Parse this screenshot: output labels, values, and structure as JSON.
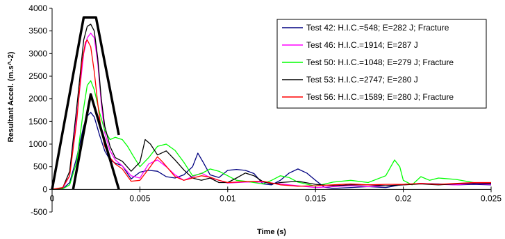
{
  "chart_data": {
    "type": "line",
    "title": "",
    "xlabel": "Time (s)",
    "ylabel": "Resultant Accel. (m.s^-2)",
    "xlim": [
      0,
      0.025
    ],
    "ylim": [
      -500,
      4000
    ],
    "x_ticks": [
      "0",
      "0.005",
      "0.01",
      "0.015",
      "0.02",
      "0.025"
    ],
    "y_ticks": [
      "4000",
      "3500",
      "3000",
      "2500",
      "2000",
      "1500",
      "1000",
      "500",
      "0",
      "-500"
    ],
    "x_tick_values": [
      0,
      0.005,
      0.01,
      0.015,
      0.02,
      0.025
    ],
    "y_tick_values": [
      4000,
      3500,
      3000,
      2500,
      2000,
      1500,
      1000,
      500,
      0,
      -500
    ],
    "grid": false,
    "legend_position": "top-right",
    "series": [
      {
        "name": "Test 42: H.I.C.=548; E=282 J; Fracture",
        "color": "#000080",
        "points": [
          [
            0,
            0
          ],
          [
            0.0006,
            10
          ],
          [
            0.001,
            150
          ],
          [
            0.0014,
            700
          ],
          [
            0.0018,
            1400
          ],
          [
            0.002,
            1620
          ],
          [
            0.0022,
            1700
          ],
          [
            0.0024,
            1600
          ],
          [
            0.0027,
            1200
          ],
          [
            0.003,
            850
          ],
          [
            0.0033,
            650
          ],
          [
            0.0036,
            580
          ],
          [
            0.004,
            520
          ],
          [
            0.0045,
            230
          ],
          [
            0.005,
            380
          ],
          [
            0.0055,
            420
          ],
          [
            0.006,
            400
          ],
          [
            0.0065,
            280
          ],
          [
            0.007,
            250
          ],
          [
            0.0075,
            320
          ],
          [
            0.008,
            500
          ],
          [
            0.0083,
            800
          ],
          [
            0.0086,
            600
          ],
          [
            0.009,
            320
          ],
          [
            0.0095,
            260
          ],
          [
            0.01,
            420
          ],
          [
            0.0105,
            440
          ],
          [
            0.011,
            420
          ],
          [
            0.0115,
            350
          ],
          [
            0.012,
            120
          ],
          [
            0.0125,
            100
          ],
          [
            0.013,
            200
          ],
          [
            0.0135,
            360
          ],
          [
            0.014,
            450
          ],
          [
            0.0145,
            360
          ],
          [
            0.015,
            200
          ],
          [
            0.0155,
            50
          ],
          [
            0.016,
            20
          ],
          [
            0.017,
            40
          ],
          [
            0.018,
            60
          ],
          [
            0.019,
            40
          ],
          [
            0.02,
            110
          ],
          [
            0.021,
            130
          ],
          [
            0.022,
            120
          ],
          [
            0.023,
            100
          ],
          [
            0.024,
            110
          ],
          [
            0.025,
            100
          ]
        ]
      },
      {
        "name": "Test 46: H.I.C.=1914; E=287 J",
        "color": "#FF00FF",
        "points": [
          [
            0,
            0
          ],
          [
            0.0006,
            20
          ],
          [
            0.001,
            300
          ],
          [
            0.0014,
            1600
          ],
          [
            0.0018,
            3000
          ],
          [
            0.002,
            3350
          ],
          [
            0.0022,
            3450
          ],
          [
            0.0024,
            3350
          ],
          [
            0.0026,
            2800
          ],
          [
            0.0028,
            1900
          ],
          [
            0.003,
            1250
          ],
          [
            0.0033,
            850
          ],
          [
            0.0036,
            650
          ],
          [
            0.004,
            520
          ],
          [
            0.0045,
            300
          ],
          [
            0.005,
            250
          ],
          [
            0.0055,
            560
          ],
          [
            0.006,
            650
          ],
          [
            0.0065,
            500
          ],
          [
            0.007,
            320
          ],
          [
            0.0075,
            200
          ],
          [
            0.008,
            280
          ],
          [
            0.0085,
            360
          ],
          [
            0.009,
            260
          ],
          [
            0.0095,
            200
          ],
          [
            0.01,
            140
          ],
          [
            0.011,
            160
          ],
          [
            0.012,
            160
          ],
          [
            0.013,
            120
          ],
          [
            0.014,
            80
          ],
          [
            0.015,
            40
          ],
          [
            0.016,
            60
          ],
          [
            0.017,
            80
          ],
          [
            0.018,
            60
          ],
          [
            0.019,
            80
          ],
          [
            0.02,
            100
          ],
          [
            0.021,
            130
          ],
          [
            0.022,
            110
          ],
          [
            0.023,
            100
          ],
          [
            0.024,
            130
          ],
          [
            0.025,
            110
          ]
        ]
      },
      {
        "name": "Test 50: H.I.C.=1048; E=279 J; Fracture",
        "color": "#00FF00",
        "points": [
          [
            0,
            0
          ],
          [
            0.0006,
            10
          ],
          [
            0.001,
            100
          ],
          [
            0.0014,
            600
          ],
          [
            0.0018,
            1800
          ],
          [
            0.002,
            2300
          ],
          [
            0.0022,
            2400
          ],
          [
            0.0024,
            2200
          ],
          [
            0.0027,
            1700
          ],
          [
            0.003,
            1300
          ],
          [
            0.0033,
            1100
          ],
          [
            0.0036,
            1150
          ],
          [
            0.004,
            1100
          ],
          [
            0.0043,
            950
          ],
          [
            0.0046,
            750
          ],
          [
            0.005,
            500
          ],
          [
            0.0055,
            700
          ],
          [
            0.006,
            950
          ],
          [
            0.0065,
            1000
          ],
          [
            0.007,
            860
          ],
          [
            0.0075,
            600
          ],
          [
            0.008,
            300
          ],
          [
            0.0085,
            350
          ],
          [
            0.009,
            450
          ],
          [
            0.0095,
            400
          ],
          [
            0.01,
            300
          ],
          [
            0.0105,
            200
          ],
          [
            0.011,
            180
          ],
          [
            0.0115,
            150
          ],
          [
            0.012,
            120
          ],
          [
            0.0125,
            200
          ],
          [
            0.013,
            300
          ],
          [
            0.0135,
            260
          ],
          [
            0.014,
            160
          ],
          [
            0.015,
            70
          ],
          [
            0.016,
            160
          ],
          [
            0.017,
            200
          ],
          [
            0.018,
            150
          ],
          [
            0.019,
            300
          ],
          [
            0.0195,
            650
          ],
          [
            0.0198,
            500
          ],
          [
            0.02,
            200
          ],
          [
            0.0205,
            100
          ],
          [
            0.021,
            280
          ],
          [
            0.0215,
            200
          ],
          [
            0.022,
            250
          ],
          [
            0.023,
            220
          ],
          [
            0.024,
            150
          ],
          [
            0.025,
            140
          ]
        ]
      },
      {
        "name": "Test 53: H.I.C.=2747; E=280 J",
        "color": "#000000",
        "points": [
          [
            0,
            0
          ],
          [
            0.0006,
            30
          ],
          [
            0.001,
            400
          ],
          [
            0.0014,
            1800
          ],
          [
            0.0018,
            3300
          ],
          [
            0.002,
            3600
          ],
          [
            0.0022,
            3650
          ],
          [
            0.0024,
            3500
          ],
          [
            0.0026,
            2900
          ],
          [
            0.0028,
            2000
          ],
          [
            0.003,
            1400
          ],
          [
            0.0033,
            950
          ],
          [
            0.0036,
            700
          ],
          [
            0.004,
            620
          ],
          [
            0.0045,
            400
          ],
          [
            0.005,
            600
          ],
          [
            0.0053,
            1100
          ],
          [
            0.0056,
            1000
          ],
          [
            0.006,
            760
          ],
          [
            0.0065,
            850
          ],
          [
            0.007,
            650
          ],
          [
            0.0075,
            430
          ],
          [
            0.008,
            250
          ],
          [
            0.0085,
            200
          ],
          [
            0.009,
            250
          ],
          [
            0.0095,
            150
          ],
          [
            0.01,
            150
          ],
          [
            0.0105,
            250
          ],
          [
            0.011,
            360
          ],
          [
            0.0115,
            300
          ],
          [
            0.012,
            170
          ],
          [
            0.0125,
            120
          ],
          [
            0.013,
            150
          ],
          [
            0.014,
            180
          ],
          [
            0.015,
            110
          ],
          [
            0.016,
            80
          ],
          [
            0.017,
            100
          ],
          [
            0.018,
            100
          ],
          [
            0.019,
            80
          ],
          [
            0.02,
            100
          ],
          [
            0.021,
            120
          ],
          [
            0.022,
            100
          ],
          [
            0.023,
            120
          ],
          [
            0.024,
            140
          ],
          [
            0.025,
            130
          ]
        ]
      },
      {
        "name": "Test 56: H.I.C.=1589; E=280 J; Fracture",
        "color": "#FF0000",
        "points": [
          [
            0,
            0
          ],
          [
            0.0006,
            40
          ],
          [
            0.001,
            300
          ],
          [
            0.0014,
            1500
          ],
          [
            0.0017,
            2800
          ],
          [
            0.0019,
            3250
          ],
          [
            0.002,
            3300
          ],
          [
            0.0022,
            3150
          ],
          [
            0.0024,
            2600
          ],
          [
            0.0026,
            1900
          ],
          [
            0.0028,
            1300
          ],
          [
            0.003,
            950
          ],
          [
            0.0033,
            700
          ],
          [
            0.0036,
            560
          ],
          [
            0.004,
            450
          ],
          [
            0.0045,
            180
          ],
          [
            0.005,
            200
          ],
          [
            0.0055,
            450
          ],
          [
            0.006,
            720
          ],
          [
            0.0063,
            600
          ],
          [
            0.0067,
            420
          ],
          [
            0.007,
            280
          ],
          [
            0.0075,
            200
          ],
          [
            0.008,
            250
          ],
          [
            0.0085,
            300
          ],
          [
            0.009,
            270
          ],
          [
            0.0095,
            200
          ],
          [
            0.01,
            150
          ],
          [
            0.011,
            170
          ],
          [
            0.012,
            180
          ],
          [
            0.013,
            100
          ],
          [
            0.014,
            70
          ],
          [
            0.015,
            80
          ],
          [
            0.016,
            100
          ],
          [
            0.017,
            120
          ],
          [
            0.018,
            100
          ],
          [
            0.019,
            110
          ],
          [
            0.02,
            110
          ],
          [
            0.021,
            130
          ],
          [
            0.022,
            110
          ],
          [
            0.023,
            130
          ],
          [
            0.024,
            150
          ],
          [
            0.025,
            150
          ]
        ]
      },
      {
        "name": "",
        "color": "#000000",
        "thick": true,
        "legend": false,
        "points": [
          [
            0,
            0
          ],
          [
            0.0018,
            3800
          ],
          [
            0.0025,
            3800
          ],
          [
            0.0038,
            1200
          ]
        ]
      },
      {
        "name": "",
        "color": "#000000",
        "thick": true,
        "legend": false,
        "points": [
          [
            0.0012,
            0
          ],
          [
            0.0022,
            2100
          ],
          [
            0.0038,
            0
          ]
        ]
      }
    ]
  }
}
